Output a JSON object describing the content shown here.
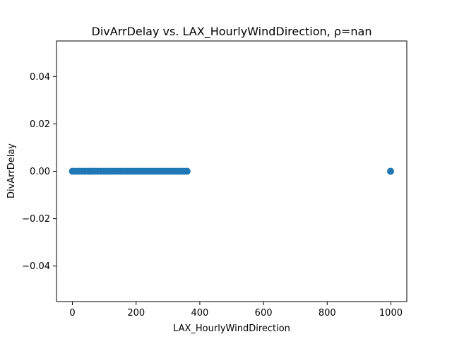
{
  "chart_data": {
    "type": "scatter",
    "title": "DivArrDelay vs. LAX_HourlyWindDirection, ρ=nan",
    "xlabel": "LAX_HourlyWindDirection",
    "ylabel": "DivArrDelay",
    "xlim": [
      -50,
      1050
    ],
    "ylim": [
      -0.055,
      0.055
    ],
    "xticks": [
      0,
      200,
      400,
      600,
      800,
      1000
    ],
    "yticks": [
      -0.04,
      -0.02,
      0.0,
      0.02,
      0.04
    ],
    "xtick_labels": [
      "0",
      "200",
      "400",
      "600",
      "800",
      "1000"
    ],
    "ytick_labels": [
      "−0.04",
      "−0.02",
      "0.00",
      "0.02",
      "0.04"
    ],
    "grid": false,
    "marker_color": "#1f77b4",
    "series": [
      {
        "x": [
          0,
          10,
          20,
          30,
          40,
          50,
          60,
          70,
          80,
          90,
          100,
          110,
          120,
          130,
          140,
          150,
          160,
          170,
          180,
          190,
          200,
          210,
          220,
          230,
          240,
          250,
          260,
          270,
          280,
          290,
          300,
          310,
          320,
          330,
          340,
          350,
          360,
          999
        ],
        "y": [
          0,
          0,
          0,
          0,
          0,
          0,
          0,
          0,
          0,
          0,
          0,
          0,
          0,
          0,
          0,
          0,
          0,
          0,
          0,
          0,
          0,
          0,
          0,
          0,
          0,
          0,
          0,
          0,
          0,
          0,
          0,
          0,
          0,
          0,
          0,
          0,
          0,
          0
        ]
      }
    ]
  }
}
